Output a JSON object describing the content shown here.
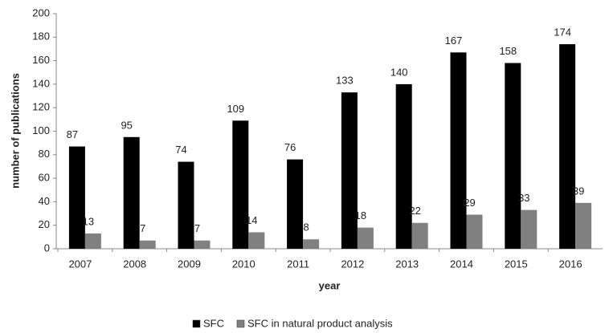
{
  "chart_data": {
    "type": "bar",
    "x_label": "year",
    "y_label": "number of publications",
    "categories": [
      "2007",
      "2008",
      "2009",
      "2010",
      "2011",
      "2012",
      "2013",
      "2014",
      "2015",
      "2016"
    ],
    "series": [
      {
        "name": "SFC",
        "color": "#000000",
        "values": [
          87,
          95,
          74,
          109,
          76,
          133,
          140,
          167,
          158,
          174
        ]
      },
      {
        "name": "SFC in natural product analysis",
        "color": "#808080",
        "values": [
          13,
          7,
          7,
          14,
          8,
          18,
          22,
          29,
          33,
          39
        ]
      }
    ],
    "ylim": [
      0,
      200
    ],
    "yticks": [
      0,
      20,
      40,
      60,
      80,
      100,
      120,
      140,
      160,
      180,
      200
    ],
    "grid": false,
    "legend": "bottom"
  }
}
